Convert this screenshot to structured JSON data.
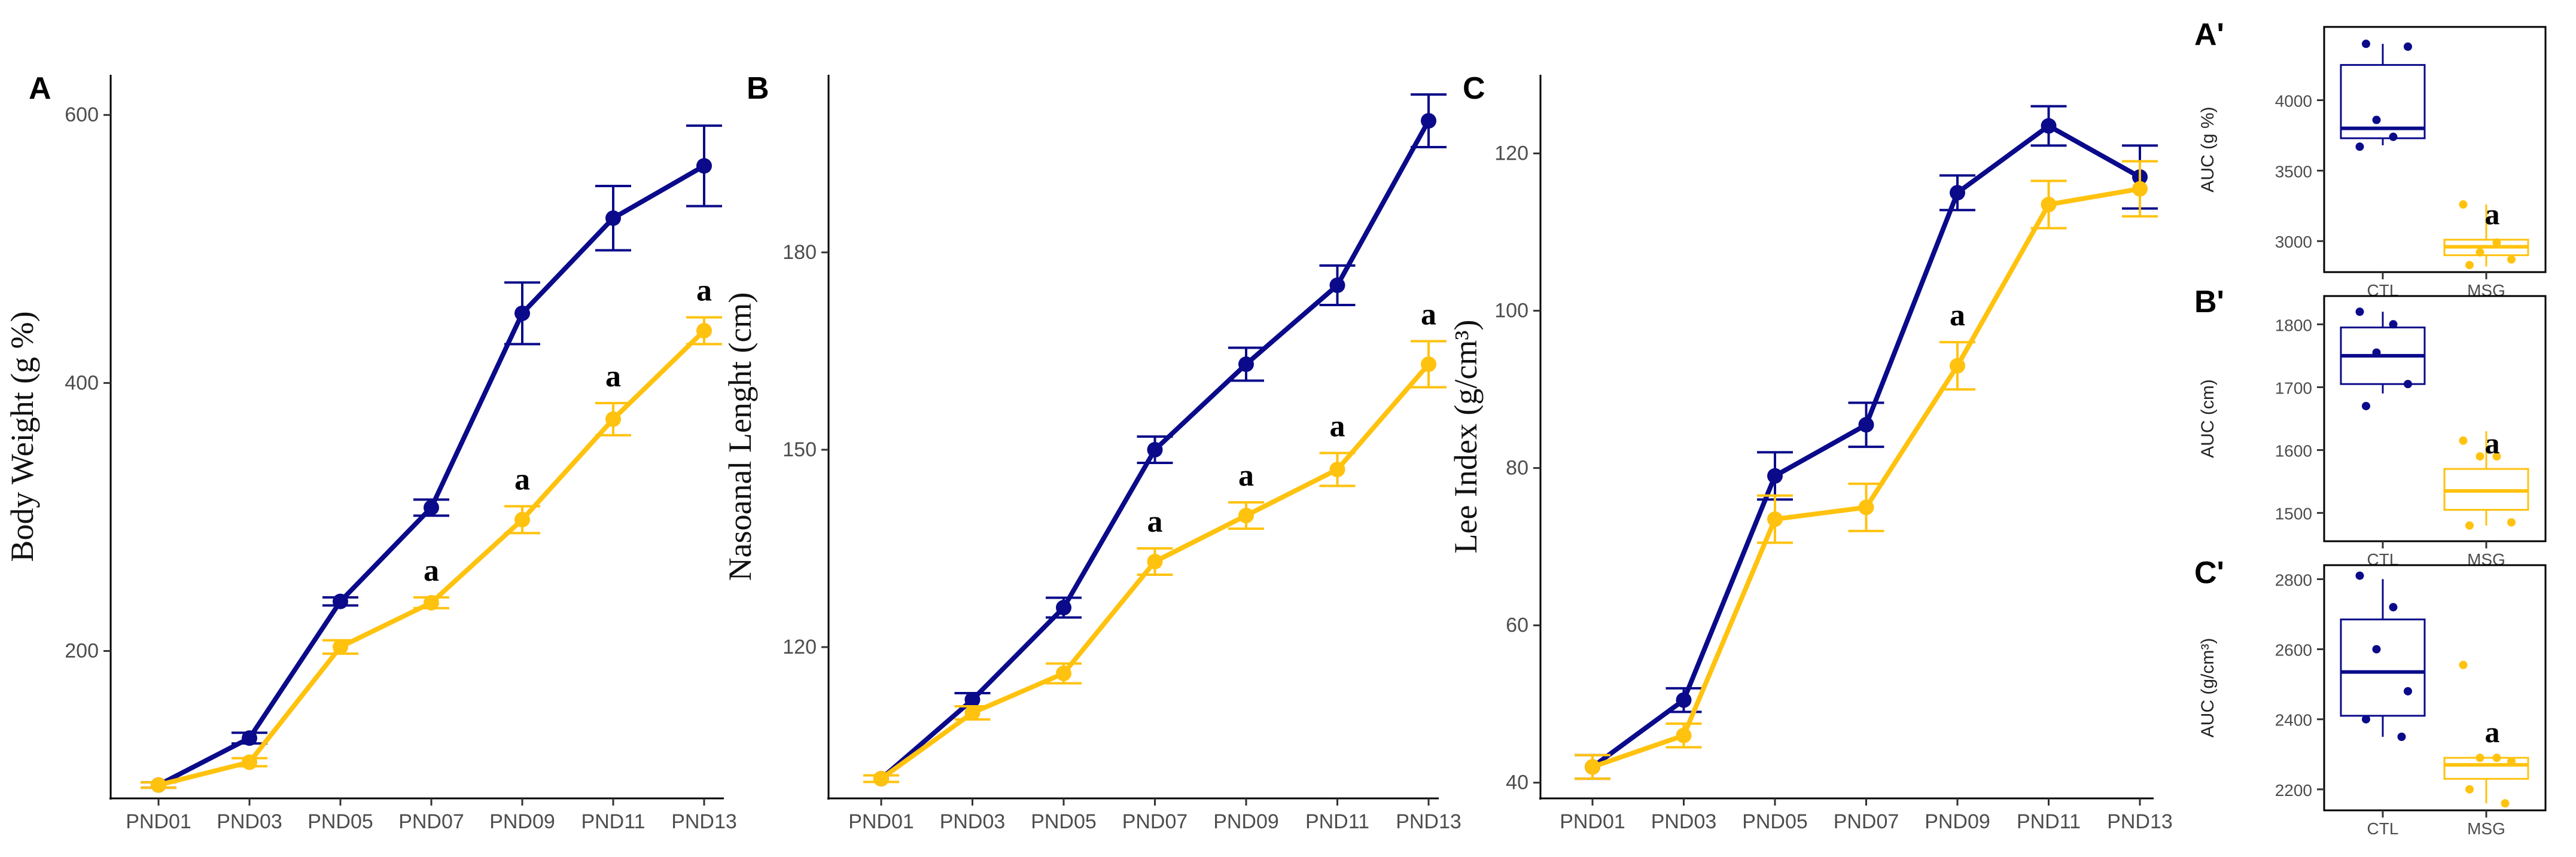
{
  "colors": {
    "CTL": "#0a0a8a",
    "MSG": "#ffc20e",
    "axis": "#000000"
  },
  "chart_data": [
    {
      "id": "A",
      "panel_label": "A",
      "type": "line",
      "ylabel": "Body Weight (g %)",
      "categories": [
        "PND01",
        "PND03",
        "PND05",
        "PND07",
        "PND09",
        "PND11",
        "PND13"
      ],
      "ylim": [
        90,
        630
      ],
      "yticks": [
        200,
        400,
        600
      ],
      "series": [
        {
          "name": "CTL",
          "color": "#0a0a8a",
          "values": [
            100,
            135,
            237,
            307,
            452,
            523,
            562
          ],
          "err": [
            2,
            4,
            3,
            6,
            23,
            24,
            30
          ]
        },
        {
          "name": "MSG",
          "color": "#ffc20e",
          "values": [
            100,
            117,
            203,
            236,
            298,
            373,
            439
          ],
          "err": [
            2,
            3,
            5,
            4,
            10,
            12,
            10
          ]
        }
      ],
      "sig": [
        {
          "label": "a",
          "index": 3
        },
        {
          "label": "a",
          "index": 4
        },
        {
          "label": "a",
          "index": 5
        },
        {
          "label": "a",
          "index": 6
        }
      ]
    },
    {
      "id": "B",
      "panel_label": "B",
      "type": "line",
      "ylabel": "Nasoanal Lenght (cm)",
      "categories": [
        "PND01",
        "PND03",
        "PND05",
        "PND07",
        "PND09",
        "PND11",
        "PND13"
      ],
      "ylim": [
        97,
        207
      ],
      "yticks": [
        120,
        150,
        180
      ],
      "series": [
        {
          "name": "CTL",
          "color": "#0a0a8a",
          "values": [
            100,
            112,
            126,
            150,
            163,
            175,
            200
          ],
          "err": [
            0.5,
            1,
            1.5,
            2,
            2.5,
            3,
            4
          ]
        },
        {
          "name": "MSG",
          "color": "#ffc20e",
          "values": [
            100,
            110,
            116,
            133,
            140,
            147,
            163
          ],
          "err": [
            0.5,
            1,
            1.5,
            2,
            2,
            2.5,
            3.5
          ]
        }
      ],
      "sig": [
        {
          "label": "a",
          "index": 3
        },
        {
          "label": "a",
          "index": 4
        },
        {
          "label": "a",
          "index": 5
        },
        {
          "label": "a",
          "index": 6
        }
      ]
    },
    {
      "id": "C",
      "panel_label": "C",
      "type": "line",
      "ylabel": "Lee Index (g/cm³)",
      "categories": [
        "PND01",
        "PND03",
        "PND05",
        "PND07",
        "PND09",
        "PND11",
        "PND13"
      ],
      "ylim": [
        38,
        130
      ],
      "yticks": [
        40,
        60,
        80,
        100,
        120
      ],
      "series": [
        {
          "name": "CTL",
          "color": "#0a0a8a",
          "values": [
            42,
            50.5,
            79,
            85.5,
            115,
            123.5,
            117
          ],
          "err": [
            1.5,
            1.5,
            3,
            2.8,
            2.2,
            2.5,
            4
          ]
        },
        {
          "name": "MSG",
          "color": "#ffc20e",
          "values": [
            42,
            46,
            73.5,
            75,
            93,
            113.5,
            115.5
          ],
          "err": [
            1.5,
            1.5,
            3,
            3,
            3,
            3,
            3.5
          ]
        }
      ],
      "sig": [
        {
          "label": "a",
          "index": 4
        }
      ]
    },
    {
      "id": "A'",
      "panel_label": "A'",
      "type": "box",
      "ylabel": "AUC (g %)",
      "categories": [
        "CTL",
        "MSG"
      ],
      "ylim": [
        2780,
        4520
      ],
      "yticks": [
        3000,
        3500,
        4000
      ],
      "boxes": [
        {
          "name": "CTL",
          "color": "#0a0a8a",
          "q1": 3730,
          "median": 3800,
          "q3": 4250,
          "min": 3680,
          "max": 4400,
          "points": [
            3670,
            3740,
            3860,
            4380,
            4400
          ]
        },
        {
          "name": "MSG",
          "color": "#ffc20e",
          "q1": 2900,
          "median": 2960,
          "q3": 3010,
          "min": 2820,
          "max": 3260,
          "points": [
            3260,
            2990,
            2920,
            2870,
            2830
          ]
        }
      ],
      "sig": [
        {
          "label": "a",
          "index": 1
        }
      ]
    },
    {
      "id": "B'",
      "panel_label": "B'",
      "type": "box",
      "ylabel": "AUC (cm)",
      "categories": [
        "CTL",
        "MSG"
      ],
      "ylim": [
        1455,
        1845
      ],
      "yticks": [
        1500,
        1600,
        1700,
        1800
      ],
      "boxes": [
        {
          "name": "CTL",
          "color": "#0a0a8a",
          "q1": 1705,
          "median": 1750,
          "q3": 1795,
          "min": 1690,
          "max": 1820,
          "points": [
            1820,
            1800,
            1755,
            1705,
            1670
          ]
        },
        {
          "name": "MSG",
          "color": "#ffc20e",
          "q1": 1505,
          "median": 1535,
          "q3": 1570,
          "min": 1480,
          "max": 1630,
          "points": [
            1615,
            1590,
            1590,
            1485,
            1480
          ]
        }
      ],
      "sig": [
        {
          "label": "a",
          "index": 1
        }
      ]
    },
    {
      "id": "C'",
      "panel_label": "C'",
      "type": "box",
      "ylabel": "AUC (g/cm³)",
      "categories": [
        "CTL",
        "MSG"
      ],
      "ylim": [
        2140,
        2840
      ],
      "yticks": [
        2200,
        2400,
        2600,
        2800
      ],
      "boxes": [
        {
          "name": "CTL",
          "color": "#0a0a8a",
          "q1": 2410,
          "median": 2535,
          "q3": 2685,
          "min": 2350,
          "max": 2800,
          "points": [
            2810,
            2720,
            2600,
            2480,
            2400,
            2350
          ]
        },
        {
          "name": "MSG",
          "color": "#ffc20e",
          "q1": 2230,
          "median": 2270,
          "q3": 2290,
          "min": 2160,
          "max": 2290,
          "points": [
            2555,
            2290,
            2290,
            2280,
            2200,
            2160
          ]
        }
      ],
      "sig": [
        {
          "label": "a",
          "index": 1
        }
      ]
    }
  ]
}
